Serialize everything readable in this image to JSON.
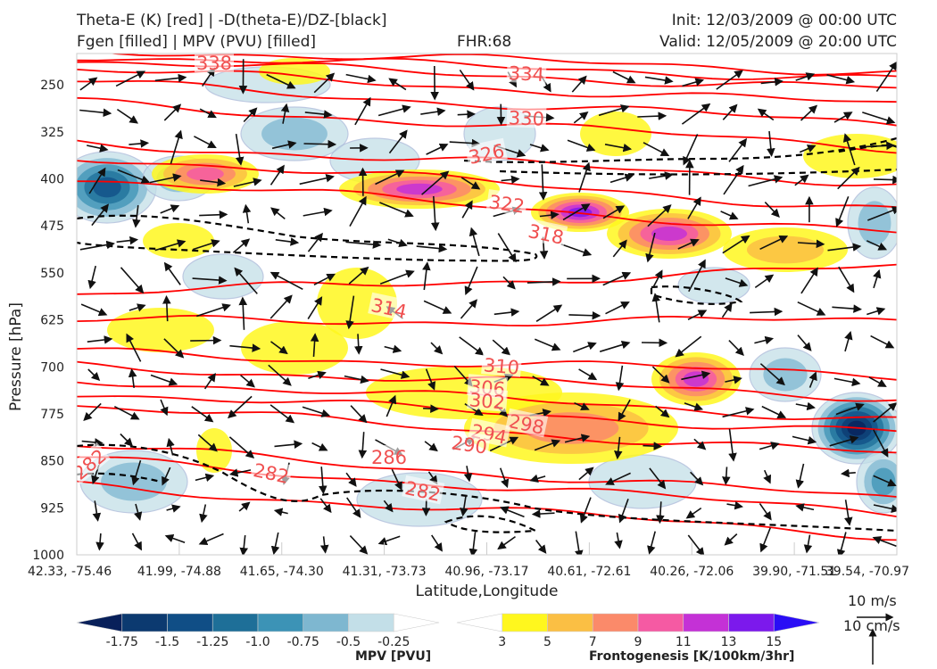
{
  "header": {
    "title_line1": "Theta-E (K) [red] | -D(theta-E)/DZ-[black]",
    "title_line2": "Fgen [filled] | MPV (PVU) [filled]",
    "fhr": "FHR:68",
    "init": "Init: 12/03/2009 @ 00:00 UTC",
    "valid": "Valid: 12/05/2009 @ 20:00 UTC"
  },
  "chart_data": {
    "type": "cross-section",
    "xlabel": "Latitude,Longitude",
    "ylabel": "Pressure [hPa]",
    "x_ticks": [
      "42.33, -75.46",
      "41.99, -74.88",
      "41.65, -74.30",
      "41.31, -73.73",
      "40.96, -73.17",
      "40.61, -72.61",
      "40.26, -72.06",
      "39.90, -71.51",
      "39.54, -70.97"
    ],
    "y_ticks": [
      250,
      325,
      400,
      475,
      550,
      625,
      700,
      775,
      850,
      925,
      1000
    ],
    "ylim": [
      1000,
      200
    ],
    "theta_e_contours": {
      "color": "#ff0000",
      "labels": [
        "338",
        "334",
        "330",
        "326",
        "322",
        "318",
        "314",
        "310",
        "306",
        "302",
        "298",
        "294",
        "290",
        "286",
        "282",
        "282",
        "282"
      ],
      "levels": [
        282,
        286,
        290,
        294,
        298,
        302,
        306,
        310,
        314,
        318,
        322,
        326,
        330,
        334,
        338,
        342
      ]
    },
    "dthetae_dz_contour": {
      "color": "#000000",
      "style": "dashed"
    },
    "mpv_colorbar": {
      "label": "MPV [PVU]",
      "ticks": [
        "-1.75",
        "-1.5",
        "-1.25",
        "-1.0",
        "-0.75",
        "-0.5",
        "-0.25"
      ],
      "colors": [
        "#08205a",
        "#0c3a70",
        "#104e86",
        "#1e6f98",
        "#3c93b6",
        "#7eb7d0",
        "#c3dfe8",
        "#ffffff"
      ]
    },
    "fgen_colorbar": {
      "label": "Frontogenesis [K/100km/3hr]",
      "ticks": [
        "3",
        "5",
        "7",
        "9",
        "11",
        "13",
        "15"
      ],
      "colors": [
        "#ffffff",
        "#fff71e",
        "#fbbf44",
        "#fb8a6a",
        "#f55aa3",
        "#c431d6",
        "#7c19ec",
        "#2a0df5"
      ]
    },
    "vector_legend": {
      "label1": "10 m/s",
      "label2": "10 cm/s"
    }
  }
}
